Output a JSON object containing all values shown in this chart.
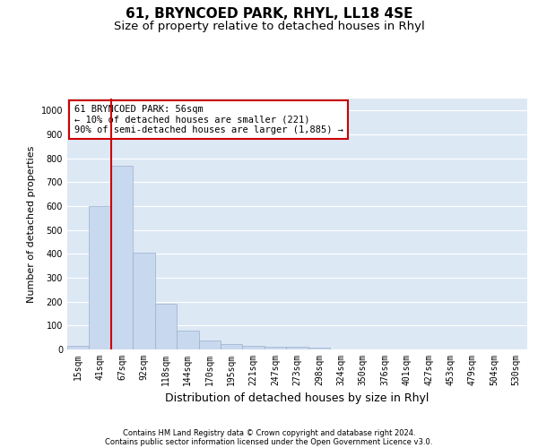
{
  "title": "61, BRYNCOED PARK, RHYL, LL18 4SE",
  "subtitle": "Size of property relative to detached houses in Rhyl",
  "xlabel": "Distribution of detached houses by size in Rhyl",
  "ylabel": "Number of detached properties",
  "footer1": "Contains HM Land Registry data © Crown copyright and database right 2024.",
  "footer2": "Contains public sector information licensed under the Open Government Licence v3.0.",
  "bin_labels": [
    "15sqm",
    "41sqm",
    "67sqm",
    "92sqm",
    "118sqm",
    "144sqm",
    "170sqm",
    "195sqm",
    "221sqm",
    "247sqm",
    "273sqm",
    "298sqm",
    "324sqm",
    "350sqm",
    "376sqm",
    "401sqm",
    "427sqm",
    "453sqm",
    "479sqm",
    "504sqm",
    "530sqm"
  ],
  "bar_values": [
    15,
    600,
    770,
    405,
    190,
    78,
    38,
    22,
    15,
    12,
    12,
    7,
    0,
    0,
    0,
    0,
    0,
    0,
    0,
    0,
    0
  ],
  "bar_color": "#c8d8ee",
  "bar_edge_color": "#9ab0cc",
  "vline_x": 1.5,
  "vline_color": "#cc0000",
  "annotation_text": "61 BRYNCOED PARK: 56sqm\n← 10% of detached houses are smaller (221)\n90% of semi-detached houses are larger (1,885) →",
  "annotation_box_color": "#ffffff",
  "annotation_box_edge": "#cc0000",
  "ylim": [
    0,
    1050
  ],
  "yticks": [
    0,
    100,
    200,
    300,
    400,
    500,
    600,
    700,
    800,
    900,
    1000
  ],
  "background_color": "#ffffff",
  "plot_bg_color": "#dde8f5",
  "grid_color": "#ffffff",
  "title_fontsize": 11,
  "subtitle_fontsize": 9.5,
  "tick_fontsize": 7,
  "ylabel_fontsize": 8,
  "xlabel_fontsize": 9,
  "footer_fontsize": 6,
  "ann_fontsize": 7.5
}
